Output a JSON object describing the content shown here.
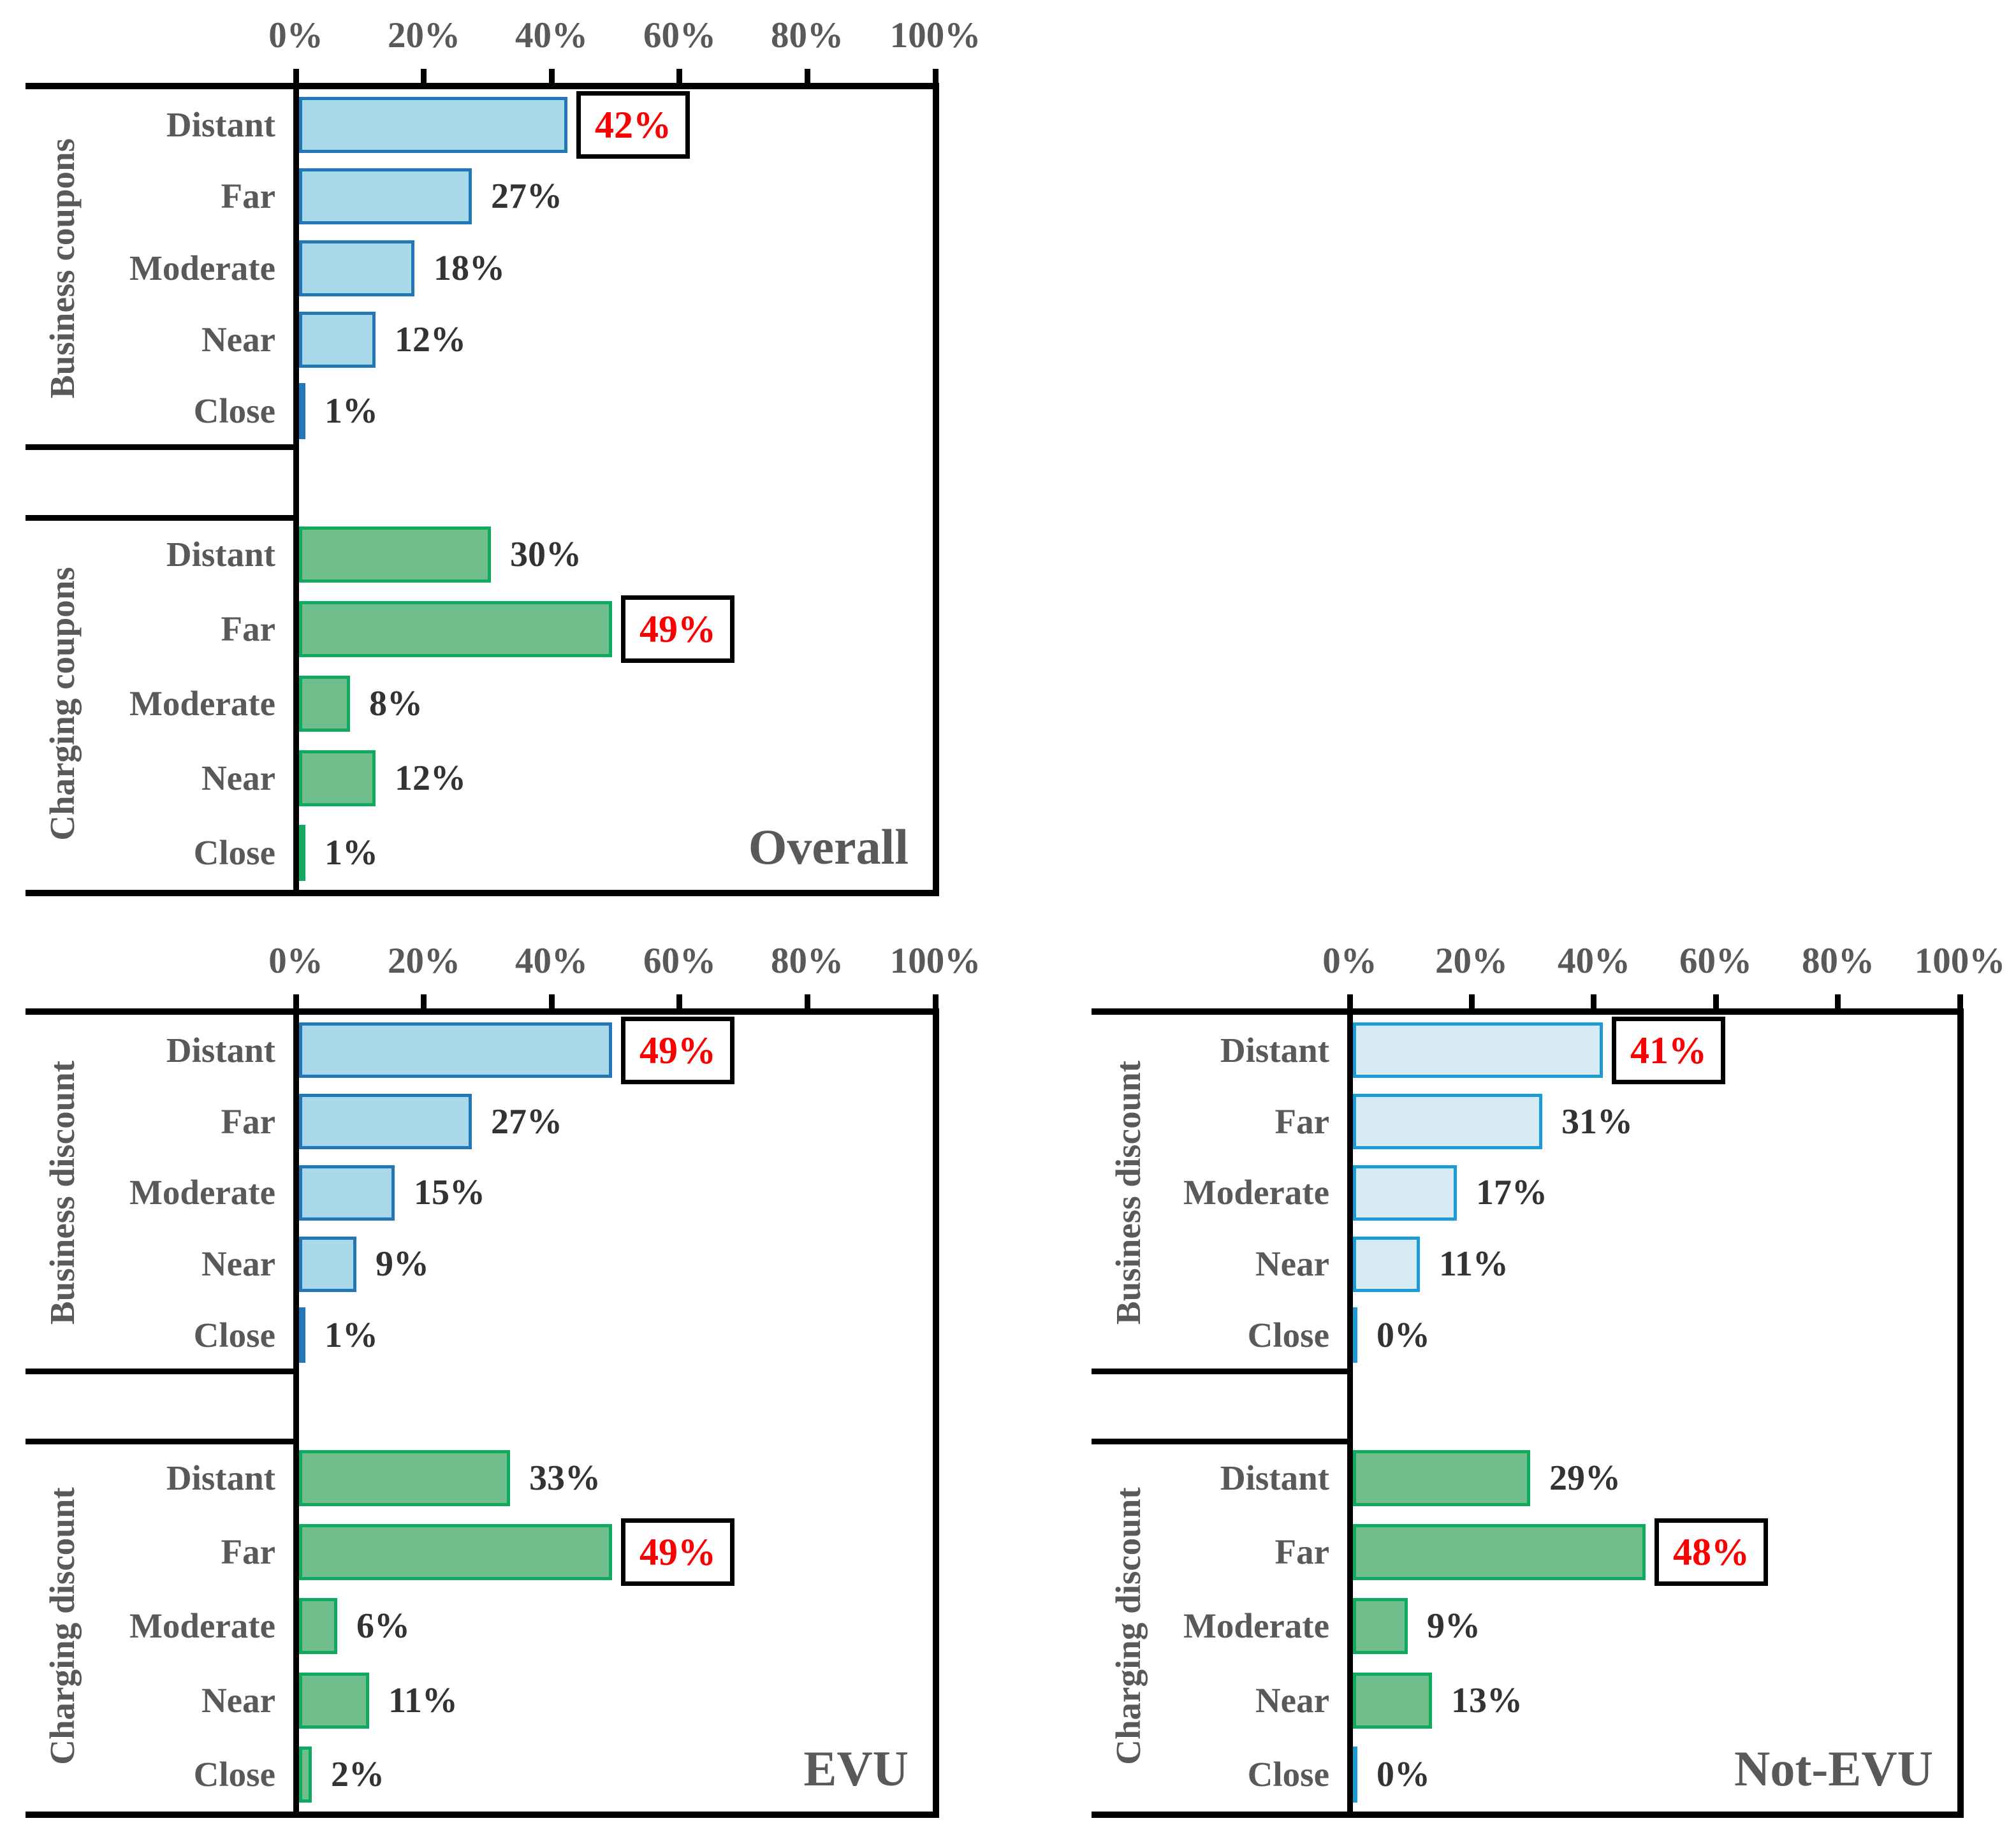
{
  "figure": {
    "background": "#ffffff"
  },
  "colors": {
    "frame": "#000000",
    "label_text": "#595959",
    "value_text": "#333333",
    "highlight_text": "#fb0000",
    "highlight_box_bg": "#ffffff",
    "highlight_box_border": "#000000",
    "blue_fill": "#a9d8e9",
    "blue_border": "#2277b6",
    "pale_blue_fill": "#d9eaf7",
    "pale_blue_border": "#1c9ad6",
    "green_fill": "#6fbe8c",
    "green_border": "#0fa95f",
    "zero_sliver": "#1c9ad6"
  },
  "chart_data": [
    {
      "type": "bar",
      "orientation": "horizontal",
      "title": "Overall",
      "x_tick_labels": [
        "0%",
        "20%",
        "40%",
        "60%",
        "80%",
        "100%"
      ],
      "xlim": [
        0,
        100
      ],
      "grid": false,
      "groups": [
        {
          "label": "Business coupons",
          "palette": "blue",
          "categories": [
            "Distant",
            "Far",
            "Moderate",
            "Near",
            "Close"
          ],
          "values": [
            42,
            27,
            18,
            12,
            1
          ],
          "value_labels": [
            "42%",
            "27%",
            "18%",
            "12%",
            "1%"
          ],
          "highlight_index": 0
        },
        {
          "label": "Charging coupons",
          "palette": "green",
          "categories": [
            "Distant",
            "Far",
            "Moderate",
            "Near",
            "Close"
          ],
          "values": [
            30,
            49,
            8,
            12,
            1
          ],
          "value_labels": [
            "30%",
            "49%",
            "8%",
            "12%",
            "1%"
          ],
          "highlight_index": 1
        }
      ]
    },
    {
      "type": "bar",
      "orientation": "horizontal",
      "title": "EVU",
      "x_tick_labels": [
        "0%",
        "20%",
        "40%",
        "60%",
        "80%",
        "100%"
      ],
      "xlim": [
        0,
        100
      ],
      "grid": false,
      "groups": [
        {
          "label": "Business discount",
          "palette": "blue",
          "categories": [
            "Distant",
            "Far",
            "Moderate",
            "Near",
            "Close"
          ],
          "values": [
            49,
            27,
            15,
            9,
            1
          ],
          "value_labels": [
            "49%",
            "27%",
            "15%",
            "9%",
            "1%"
          ],
          "highlight_index": 0
        },
        {
          "label": "Charging discount",
          "palette": "green",
          "categories": [
            "Distant",
            "Far",
            "Moderate",
            "Near",
            "Close"
          ],
          "values": [
            33,
            49,
            6,
            11,
            2
          ],
          "value_labels": [
            "33%",
            "49%",
            "6%",
            "11%",
            "2%"
          ],
          "highlight_index": 1
        }
      ]
    },
    {
      "type": "bar",
      "orientation": "horizontal",
      "title": "Not-EVU",
      "x_tick_labels": [
        "0%",
        "20%",
        "40%",
        "60%",
        "80%",
        "100%"
      ],
      "xlim": [
        0,
        100
      ],
      "grid": false,
      "groups": [
        {
          "label": "Business discount",
          "palette": "pale_blue",
          "categories": [
            "Distant",
            "Far",
            "Moderate",
            "Near",
            "Close"
          ],
          "values": [
            41,
            31,
            17,
            11,
            0
          ],
          "value_labels": [
            "41%",
            "31%",
            "17%",
            "11%",
            "0%"
          ],
          "highlight_index": 0
        },
        {
          "label": "Charging discount",
          "palette": "green",
          "categories": [
            "Distant",
            "Far",
            "Moderate",
            "Near",
            "Close"
          ],
          "values": [
            29,
            48,
            9,
            13,
            0
          ],
          "value_labels": [
            "29%",
            "48%",
            "9%",
            "13%",
            "0%"
          ],
          "highlight_index": 1
        }
      ]
    }
  ]
}
